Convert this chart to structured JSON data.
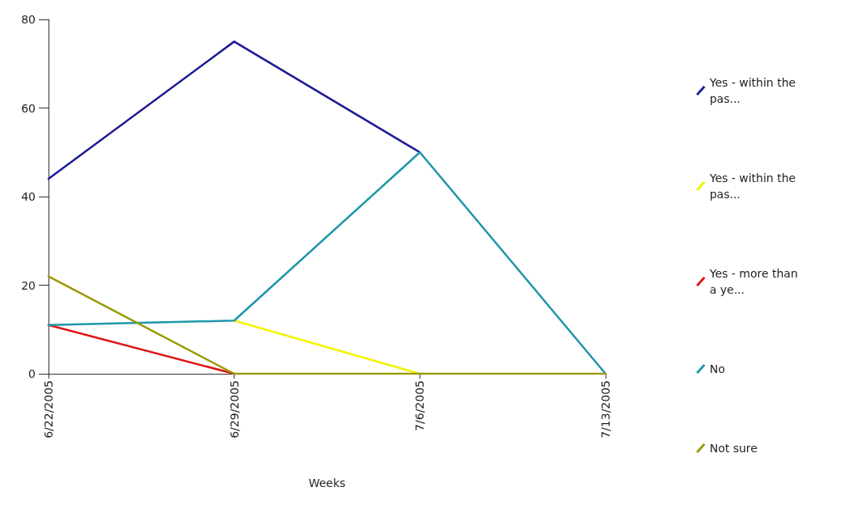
{
  "chart_data": {
    "type": "line",
    "xlabel": "Weeks",
    "categories": [
      "6/22/2005",
      "6/29/2005",
      "7/6/2005",
      "7/13/2005"
    ],
    "series": [
      {
        "name": "Yes - within the pas...",
        "color": "#1a1a96",
        "values": [
          44,
          75,
          50,
          null
        ]
      },
      {
        "name": "Yes - within the pas...",
        "color": "#f2f200",
        "values": [
          null,
          12,
          0,
          null
        ]
      },
      {
        "name": "Yes - more than a ye...",
        "color": "#e01414",
        "values": [
          11,
          0,
          null,
          null
        ]
      },
      {
        "name": "No",
        "color": "#1e96aa",
        "values": [
          11,
          12,
          50,
          0
        ]
      },
      {
        "name": "Not sure",
        "color": "#999900",
        "values": [
          22,
          0,
          0,
          0
        ]
      }
    ],
    "ylim": [
      0,
      80
    ],
    "yticks": [
      0,
      20,
      40,
      60,
      80
    ],
    "grid": false,
    "legend": "right",
    "marker": "none",
    "line_style": "solid"
  }
}
